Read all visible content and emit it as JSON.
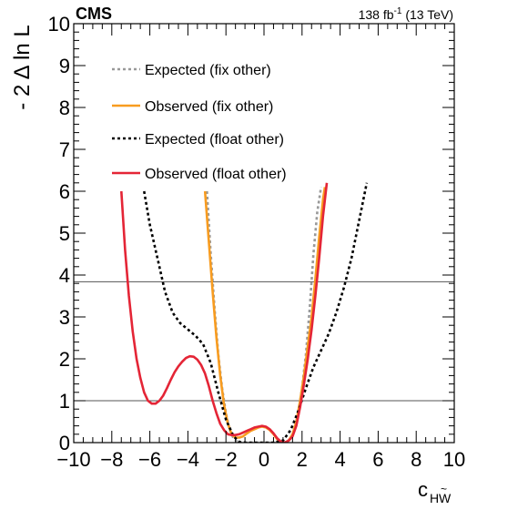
{
  "chart_data": {
    "type": "line",
    "experiment_label": "CMS",
    "lumi_label": {
      "value": "138 fb",
      "exponent": "-1",
      "energy": " (13 TeV)"
    },
    "xlabel": {
      "base": "c",
      "subscript": "H",
      "subscript_tilde_letter": "W",
      "tilde": "~"
    },
    "ylabel": "- 2 Δ ln L",
    "xlim": [
      -10,
      10
    ],
    "ylim": [
      0,
      10
    ],
    "x_ticks": [
      -10,
      -8,
      -6,
      -4,
      -2,
      0,
      2,
      4,
      6,
      8,
      10
    ],
    "x_tick_labels": [
      "−10",
      "−8",
      "−6",
      "−4",
      "−2",
      "0",
      "2",
      "4",
      "6",
      "8",
      "10"
    ],
    "y_ticks": [
      0,
      1,
      2,
      3,
      4,
      5,
      6,
      7,
      8,
      9,
      10
    ],
    "y_tick_labels": [
      "0",
      "1",
      "2",
      "3",
      "4",
      "5",
      "6",
      "7",
      "8",
      "9",
      "10"
    ],
    "reference_lines": [
      1,
      3.84
    ],
    "grid": false,
    "legend_position": "top-left",
    "series": [
      {
        "name": "Expected (fix other)",
        "color": "#999999",
        "style": "dotted",
        "x": [
          -3.0,
          -2.8,
          -2.6,
          -2.4,
          -2.2,
          -2.0,
          -1.8,
          -1.6,
          -1.4,
          -1.2,
          -1.0,
          -0.8,
          -0.5,
          0.0,
          0.5,
          0.8,
          1.0,
          1.2,
          1.4,
          1.6,
          1.8,
          2.0,
          2.2,
          2.4,
          2.6,
          2.8,
          3.0
        ],
        "y": [
          6.0,
          4.5,
          3.2,
          2.1,
          1.3,
          0.7,
          0.3,
          0.1,
          0.02,
          0.0,
          0.0,
          0.0,
          0.0,
          0.0,
          0.0,
          0.0,
          0.0,
          0.02,
          0.1,
          0.3,
          0.7,
          1.3,
          2.1,
          3.2,
          4.5,
          5.5,
          6.1
        ]
      },
      {
        "name": "Observed (fix other)",
        "color": "#f89c20",
        "style": "solid",
        "x": [
          -3.1,
          -2.9,
          -2.7,
          -2.5,
          -2.3,
          -2.1,
          -1.9,
          -1.7,
          -1.5,
          -1.3,
          -1.1,
          -0.9,
          -0.7,
          -0.5,
          -0.3,
          -0.1,
          0.1,
          0.3,
          0.5,
          0.7,
          0.9,
          1.1,
          1.3,
          1.5,
          1.7,
          1.9,
          2.1,
          2.3,
          2.5,
          2.7,
          2.9,
          3.1,
          3.2
        ],
        "y": [
          6.0,
          4.8,
          3.6,
          2.5,
          1.6,
          0.9,
          0.45,
          0.2,
          0.12,
          0.12,
          0.15,
          0.22,
          0.28,
          0.32,
          0.36,
          0.38,
          0.36,
          0.3,
          0.2,
          0.08,
          0.02,
          0.0,
          0.05,
          0.2,
          0.5,
          1.0,
          1.6,
          2.3,
          3.0,
          3.9,
          4.9,
          5.8,
          6.1
        ]
      },
      {
        "name": "Expected (float other)",
        "color": "#000000",
        "style": "dotted",
        "x": [
          -6.3,
          -6.0,
          -5.6,
          -5.2,
          -4.8,
          -4.4,
          -4.0,
          -3.6,
          -3.2,
          -2.8,
          -2.4,
          -2.0,
          -1.6,
          -1.3,
          -1.0,
          -0.5,
          0.0,
          0.5,
          1.0,
          1.4,
          1.8,
          2.2,
          2.6,
          3.0,
          3.4,
          3.8,
          4.2,
          4.6,
          5.0,
          5.4
        ],
        "y": [
          6.0,
          5.2,
          4.4,
          3.6,
          3.1,
          2.85,
          2.7,
          2.55,
          2.35,
          1.9,
          1.2,
          0.55,
          0.15,
          0.02,
          0.0,
          0.0,
          0.0,
          0.0,
          0.05,
          0.3,
          0.75,
          1.3,
          1.8,
          2.2,
          2.6,
          3.1,
          3.7,
          4.4,
          5.3,
          6.2
        ]
      },
      {
        "name": "Observed (float other)",
        "color": "#e42536",
        "style": "solid",
        "x": [
          -7.5,
          -7.3,
          -7.1,
          -6.9,
          -6.7,
          -6.5,
          -6.3,
          -6.1,
          -5.9,
          -5.7,
          -5.5,
          -5.3,
          -5.1,
          -4.9,
          -4.7,
          -4.5,
          -4.3,
          -4.1,
          -3.9,
          -3.7,
          -3.5,
          -3.3,
          -3.1,
          -2.9,
          -2.7,
          -2.5,
          -2.3,
          -2.1,
          -1.9,
          -1.7,
          -1.5,
          -1.3,
          -1.1,
          -0.9,
          -0.7,
          -0.5,
          -0.3,
          -0.1,
          0.1,
          0.3,
          0.5,
          0.7,
          0.9,
          1.1,
          1.3,
          1.5,
          1.7,
          1.9,
          2.1,
          2.3,
          2.5,
          2.7,
          2.9,
          3.1,
          3.3
        ],
        "y": [
          6.0,
          4.6,
          3.5,
          2.65,
          2.0,
          1.55,
          1.2,
          1.0,
          0.93,
          0.93,
          1.0,
          1.12,
          1.3,
          1.5,
          1.68,
          1.82,
          1.93,
          2.02,
          2.06,
          2.05,
          1.98,
          1.85,
          1.65,
          1.35,
          1.0,
          0.7,
          0.45,
          0.3,
          0.2,
          0.18,
          0.18,
          0.2,
          0.24,
          0.28,
          0.32,
          0.36,
          0.38,
          0.4,
          0.38,
          0.32,
          0.22,
          0.1,
          0.02,
          0.0,
          0.05,
          0.15,
          0.4,
          0.85,
          1.4,
          2.0,
          2.7,
          3.5,
          4.4,
          5.4,
          6.2
        ]
      }
    ]
  }
}
